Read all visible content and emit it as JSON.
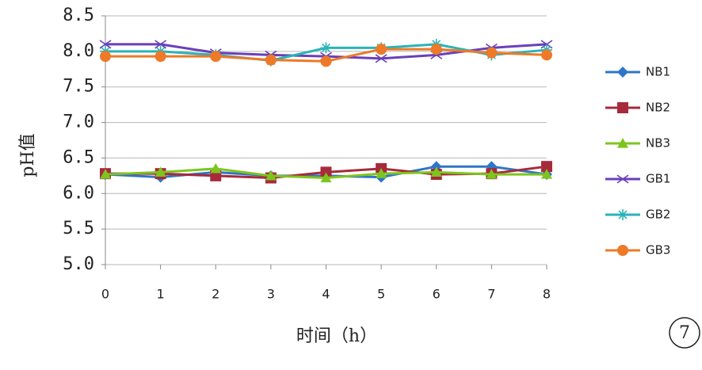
{
  "chart_data": {
    "type": "line",
    "x_label": "时间（h）",
    "y_label": "pH值",
    "annotation": "7",
    "x": [
      0,
      1,
      2,
      3,
      4,
      5,
      6,
      7,
      8
    ],
    "xlim": [
      0,
      8
    ],
    "xticks": [
      0,
      1,
      2,
      3,
      4,
      5,
      6,
      7,
      8
    ],
    "ylim": [
      5,
      8.5
    ],
    "yticks": [
      {
        "value": 5,
        "label": "5.0"
      },
      {
        "value": 5.5,
        "label": "5.5"
      },
      {
        "value": 6,
        "label": "6.0"
      },
      {
        "value": 6.5,
        "label": "6.5"
      },
      {
        "value": 7,
        "label": "7.0"
      },
      {
        "value": 7.5,
        "label": "7.5"
      },
      {
        "value": 8,
        "label": "8.0"
      },
      {
        "value": 8.5,
        "label": "8.5"
      }
    ],
    "grid": true,
    "legend": "right",
    "series": [
      {
        "name": "NB1",
        "color": "#2e75c8",
        "marker": "diamond",
        "values": [
          6.27,
          6.23,
          6.3,
          6.25,
          6.25,
          6.23,
          6.38,
          6.38,
          6.27
        ]
      },
      {
        "name": "NB2",
        "color": "#a62a3c",
        "marker": "square",
        "values": [
          6.28,
          6.28,
          6.25,
          6.22,
          6.3,
          6.35,
          6.27,
          6.28,
          6.38
        ]
      },
      {
        "name": "NB3",
        "color": "#7dc51e",
        "marker": "triangle",
        "values": [
          6.27,
          6.3,
          6.35,
          6.25,
          6.22,
          6.28,
          6.3,
          6.27,
          6.27
        ]
      },
      {
        "name": "GB1",
        "color": "#6a3fb8",
        "marker": "x",
        "values": [
          8.1,
          8.1,
          7.98,
          7.95,
          7.93,
          7.9,
          7.95,
          8.05,
          8.1
        ]
      },
      {
        "name": "GB2",
        "color": "#2ab3b8",
        "marker": "star",
        "values": [
          8.0,
          8.0,
          7.95,
          7.87,
          8.05,
          8.05,
          8.1,
          7.95,
          8.02
        ]
      },
      {
        "name": "GB3",
        "color": "#ec7a28",
        "marker": "circle",
        "values": [
          7.93,
          7.93,
          7.93,
          7.88,
          7.86,
          8.03,
          8.03,
          7.98,
          7.95
        ]
      }
    ]
  }
}
